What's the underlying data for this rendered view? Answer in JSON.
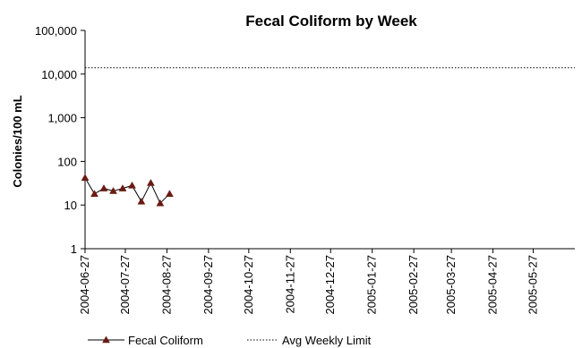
{
  "chart_data": {
    "type": "line",
    "title": "Fecal Coliform by Week",
    "xlabel": "",
    "ylabel": "Colonies/100 mL",
    "y_scale": "log",
    "ylim": [
      1,
      100000
    ],
    "y_ticks": [
      1,
      10,
      100,
      1000,
      10000,
      100000
    ],
    "y_tick_labels": [
      "1",
      "10",
      "100",
      "1,000",
      "10,000",
      "100,000"
    ],
    "xlim": [
      "2004-06-27",
      "2005-06-27"
    ],
    "x_tick_labels": [
      "2004-06-27",
      "2004-07-27",
      "2004-08-27",
      "2004-09-27",
      "2004-10-27",
      "2004-11-27",
      "2004-12-27",
      "2005-01-27",
      "2005-02-27",
      "2005-03-27",
      "2005-04-27",
      "2005-05-27"
    ],
    "grid": false,
    "legend_position": "bottom",
    "series": [
      {
        "name": "Fecal Coliform",
        "color": "#6b1a12",
        "marker": "triangle",
        "x": [
          "2004-06-27",
          "2004-07-04",
          "2004-07-11",
          "2004-07-18",
          "2004-07-25",
          "2004-08-01",
          "2004-08-08",
          "2004-08-15",
          "2004-08-22",
          "2004-08-29"
        ],
        "y": [
          42,
          18,
          24,
          21,
          24,
          28,
          12,
          32,
          11,
          18
        ]
      },
      {
        "name": "Avg Weekly Limit",
        "color": "#000000",
        "style": "dotted",
        "x": [
          "2004-06-27",
          "2005-06-27"
        ],
        "y": [
          14000,
          14000
        ]
      }
    ]
  }
}
